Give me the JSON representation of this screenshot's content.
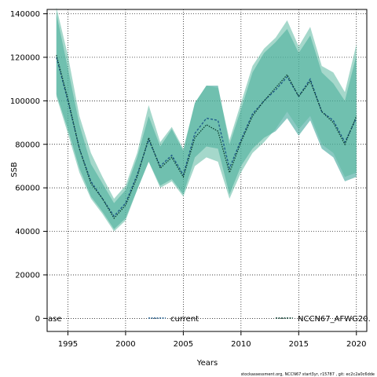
{
  "chart_data": {
    "type": "area",
    "xlabel": "Years",
    "ylabel": "SSB",
    "xlim": [
      1993.2,
      2020.9
    ],
    "ylim": [
      -6000,
      142000
    ],
    "xticks": [
      1995,
      2000,
      2005,
      2010,
      2015,
      2020
    ],
    "yticks": [
      0,
      20000,
      40000,
      60000,
      80000,
      100000,
      120000,
      140000
    ],
    "grid": true,
    "legend_position": "bottom",
    "legend": [
      {
        "label": "ase",
        "color": "#1a7a6e",
        "style": "solid"
      },
      {
        "label": "current",
        "color": "#1f5a8a",
        "style": "dotted"
      },
      {
        "label": "NCCN67_AFWG20.",
        "color": "#0b3d2e",
        "style": "dotted"
      }
    ],
    "footer": "stockassessment.org, NCCN67 start3yr, r15787 , git: ec2c2a0c6dde",
    "x": [
      1994,
      1995,
      1996,
      1997,
      1998,
      1999,
      2000,
      2001,
      2002,
      2003,
      2004,
      2005,
      2006,
      2007,
      2008,
      2009,
      2010,
      2011,
      2012,
      2013,
      2014,
      2015,
      2016,
      2017,
      2018,
      2019,
      2020
    ],
    "series": [
      {
        "name": "current",
        "color": "#1f5a8a",
        "values": [
          120000,
          100000,
          78000,
          63000,
          55000,
          47000,
          53000,
          66000,
          82000,
          70000,
          75000,
          66000,
          85000,
          92000,
          91000,
          69000,
          82000,
          94000,
          100000,
          105000,
          111000,
          102000,
          110000,
          95000,
          91000,
          81000,
          92000
        ],
        "lower": [
          103000,
          87000,
          69000,
          56000,
          49000,
          41000,
          46000,
          59000,
          72000,
          61000,
          64000,
          57000,
          74000,
          79000,
          78000,
          57000,
          70000,
          78000,
          83000,
          86000,
          92000,
          84000,
          91000,
          78000,
          74000,
          63000,
          65000
        ],
        "upper": [
          140000,
          115000,
          89000,
          71000,
          62000,
          53000,
          59000,
          74000,
          93000,
          79000,
          87000,
          77000,
          99000,
          107000,
          107000,
          80000,
          96000,
          113000,
          122000,
          127000,
          133000,
          122000,
          130000,
          113000,
          108000,
          100000,
          121000
        ]
      },
      {
        "name": "NCCN67_AFWG20.",
        "color": "#0b3d2e",
        "values": [
          121000,
          101000,
          78000,
          62000,
          55000,
          46000,
          52000,
          65000,
          83000,
          69000,
          74000,
          65000,
          83000,
          89000,
          86000,
          67000,
          81000,
          93000,
          100000,
          106000,
          112000,
          102000,
          109000,
          95000,
          90000,
          80000,
          93000
        ],
        "lower": [
          102000,
          85000,
          67000,
          55000,
          48000,
          40000,
          45000,
          59000,
          72000,
          60000,
          63000,
          56000,
          70000,
          74000,
          72000,
          55000,
          67000,
          76000,
          81000,
          87000,
          95000,
          87000,
          93000,
          80000,
          76000,
          65000,
          67000
        ],
        "upper": [
          143000,
          121000,
          93000,
          76000,
          65000,
          55000,
          61000,
          76000,
          98000,
          81000,
          88000,
          78000,
          99000,
          107000,
          106000,
          82000,
          99000,
          116000,
          124000,
          129000,
          137000,
          125000,
          134000,
          116000,
          113000,
          104000,
          126000
        ]
      }
    ]
  }
}
